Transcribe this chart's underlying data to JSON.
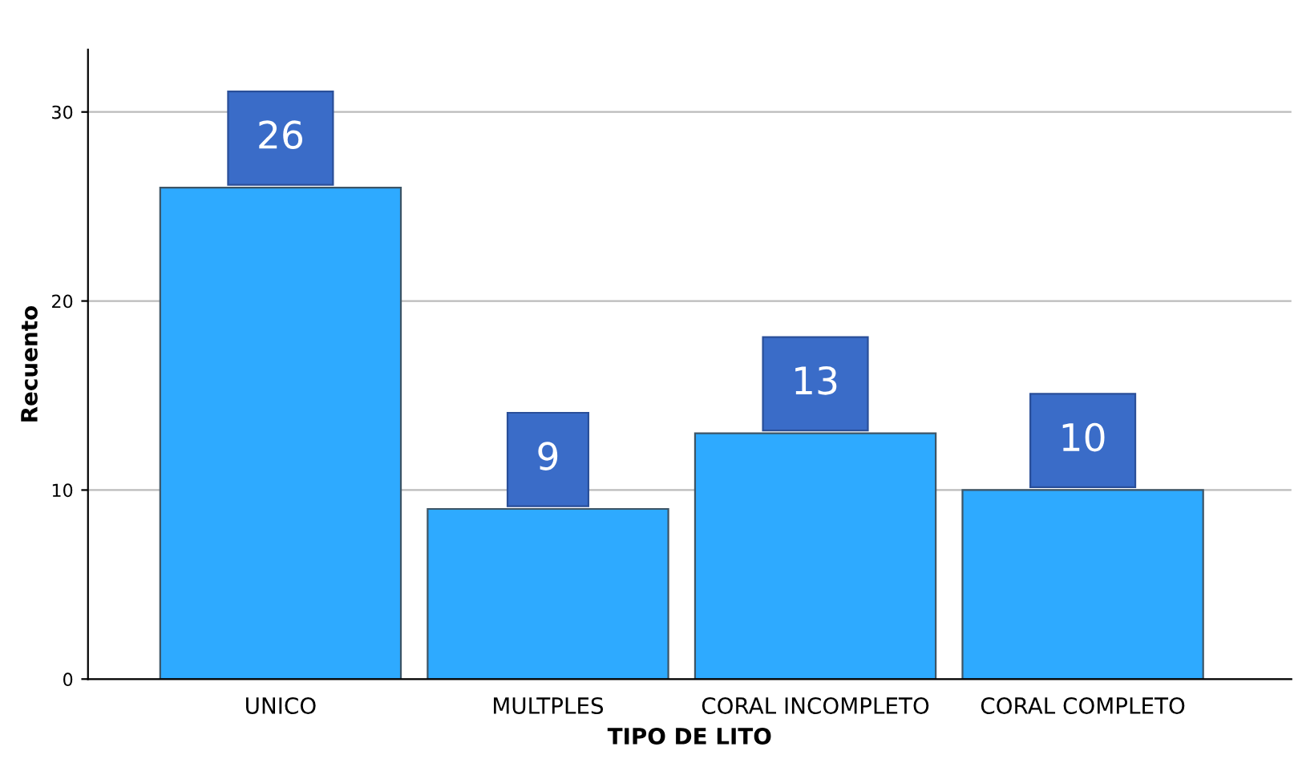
{
  "chart_data": {
    "type": "bar",
    "xlabel": "TIPO DE LITO",
    "ylabel": "Recuento",
    "categories": [
      "UNICO",
      "MULTPLES",
      "CORAL INCOMPLETO",
      "CORAL COMPLETO"
    ],
    "values": [
      26,
      9,
      13,
      10
    ],
    "color": "#2eaaff",
    "ylim": [
      0,
      33.3
    ],
    "yticks": [
      0,
      10,
      20,
      30
    ],
    "grid": "y",
    "data_labels": true
  }
}
